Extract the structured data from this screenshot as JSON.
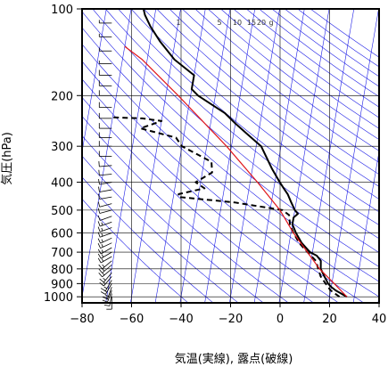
{
  "chart_data": {
    "type": "line",
    "chart_kind": "skew-T log-p thermodynamic diagram",
    "title": "",
    "xlabel": "気温(実線), 露点(破線)",
    "ylabel": "気圧(hPa)",
    "xlim": [
      -80,
      40
    ],
    "ylim": [
      1050,
      100
    ],
    "y_scale": "log",
    "x_ticks": [
      -80,
      -60,
      -40,
      -20,
      0,
      20,
      40
    ],
    "x_tick_labels": [
      "−80",
      "−60",
      "−40",
      "−20",
      "0",
      "20",
      "40"
    ],
    "y_ticks": [
      100,
      200,
      300,
      400,
      500,
      600,
      700,
      800,
      900,
      1000
    ],
    "y_tick_labels": [
      "100",
      "200",
      "300",
      "400",
      "500",
      "600",
      "700",
      "800",
      "900",
      "1000"
    ],
    "mixing_ratio_labels": [
      "1",
      "5",
      "10",
      "15",
      "20",
      "g"
    ],
    "colors": {
      "temperature": "#000000",
      "dewpoint": "#000000",
      "parcel": "#e0161b",
      "adiabats": "#1e1ee6",
      "grid": "#000000",
      "wind_barbs": "#000000"
    },
    "series": [
      {
        "line_style": "solid",
        "points": [
          {
            "p": 1000,
            "t": 27
          },
          {
            "p": 950,
            "t": 22
          },
          {
            "p": 925,
            "t": 20
          },
          {
            "p": 900,
            "t": 18.5
          },
          {
            "p": 850,
            "t": 16.5
          },
          {
            "p": 800,
            "t": 14.5
          },
          {
            "p": 750,
            "t": 14
          },
          {
            "p": 720,
            "t": 12
          },
          {
            "p": 700,
            "t": 9
          },
          {
            "p": 650,
            "t": 5
          },
          {
            "p": 600,
            "t": 2
          },
          {
            "p": 560,
            "t": 0
          },
          {
            "p": 530,
            "t": 0
          },
          {
            "p": 515,
            "t": 1.5
          },
          {
            "p": 500,
            "t": 0
          },
          {
            "p": 470,
            "t": -2
          },
          {
            "p": 440,
            "t": -4
          },
          {
            "p": 420,
            "t": -6
          },
          {
            "p": 400,
            "t": -8
          },
          {
            "p": 360,
            "t": -12
          },
          {
            "p": 300,
            "t": -18
          },
          {
            "p": 270,
            "t": -25
          },
          {
            "p": 250,
            "t": -30
          },
          {
            "p": 230,
            "t": -35
          },
          {
            "p": 200,
            "t": -47
          },
          {
            "p": 190,
            "t": -50
          },
          {
            "p": 170,
            "t": -50
          },
          {
            "p": 150,
            "t": -59
          },
          {
            "p": 130,
            "t": -66
          },
          {
            "p": 115,
            "t": -71
          },
          {
            "p": 105,
            "t": -74
          },
          {
            "p": 100,
            "t": -75
          }
        ]
      },
      {
        "line_style": "dashed",
        "points": [
          {
            "p": 1000,
            "t": 24
          },
          {
            "p": 950,
            "t": 20
          },
          {
            "p": 900,
            "t": 17.5
          },
          {
            "p": 850,
            "t": 15
          },
          {
            "p": 800,
            "t": 13.5
          },
          {
            "p": 750,
            "t": 12
          },
          {
            "p": 700,
            "t": 8
          },
          {
            "p": 650,
            "t": 4
          },
          {
            "p": 600,
            "t": 1
          },
          {
            "p": 560,
            "t": -1
          },
          {
            "p": 520,
            "t": -2
          },
          {
            "p": 500,
            "t": -5
          },
          {
            "p": 470,
            "t": -25
          },
          {
            "p": 450,
            "t": -48
          },
          {
            "p": 440,
            "t": -48
          },
          {
            "p": 420,
            "t": -38
          },
          {
            "p": 400,
            "t": -42
          },
          {
            "p": 370,
            "t": -36
          },
          {
            "p": 340,
            "t": -37
          },
          {
            "p": 300,
            "t": -50
          },
          {
            "p": 280,
            "t": -53
          },
          {
            "p": 260,
            "t": -68
          },
          {
            "p": 245,
            "t": -60
          },
          {
            "p": 240,
            "t": -68
          },
          {
            "p": 238,
            "t": -80
          }
        ]
      },
      {
        "line_style": "solid-thin",
        "points": [
          {
            "p": 1000,
            "t": 27
          },
          {
            "p": 900,
            "t": 21
          },
          {
            "p": 800,
            "t": 14
          },
          {
            "p": 700,
            "t": 8
          },
          {
            "p": 600,
            "t": 1
          },
          {
            "p": 500,
            "t": -6
          },
          {
            "p": 400,
            "t": -17
          },
          {
            "p": 300,
            "t": -32
          },
          {
            "p": 200,
            "t": -55
          },
          {
            "p": 150,
            "t": -72
          },
          {
            "p": 135,
            "t": -80
          }
        ]
      }
    ],
    "wind_barbs": [
      {
        "p": 1000,
        "speed_kt": 10,
        "dir": 180
      },
      {
        "p": 975,
        "speed_kt": 10,
        "dir": 190
      },
      {
        "p": 950,
        "speed_kt": 15,
        "dir": 200
      },
      {
        "p": 925,
        "speed_kt": 15,
        "dir": 200
      },
      {
        "p": 900,
        "speed_kt": 15,
        "dir": 210
      },
      {
        "p": 875,
        "speed_kt": 15,
        "dir": 210
      },
      {
        "p": 850,
        "speed_kt": 15,
        "dir": 220
      },
      {
        "p": 825,
        "speed_kt": 15,
        "dir": 220
      },
      {
        "p": 800,
        "speed_kt": 15,
        "dir": 230
      },
      {
        "p": 775,
        "speed_kt": 15,
        "dir": 230
      },
      {
        "p": 750,
        "speed_kt": 15,
        "dir": 230
      },
      {
        "p": 725,
        "speed_kt": 15,
        "dir": 240
      },
      {
        "p": 700,
        "speed_kt": 15,
        "dir": 240
      },
      {
        "p": 675,
        "speed_kt": 15,
        "dir": 240
      },
      {
        "p": 650,
        "speed_kt": 15,
        "dir": 245
      },
      {
        "p": 625,
        "speed_kt": 15,
        "dir": 245
      },
      {
        "p": 600,
        "speed_kt": 15,
        "dir": 250
      },
      {
        "p": 575,
        "speed_kt": 15,
        "dir": 250
      },
      {
        "p": 550,
        "speed_kt": 15,
        "dir": 250
      },
      {
        "p": 525,
        "speed_kt": 10,
        "dir": 250
      },
      {
        "p": 500,
        "speed_kt": 10,
        "dir": 255
      },
      {
        "p": 475,
        "speed_kt": 10,
        "dir": 255
      },
      {
        "p": 450,
        "speed_kt": 10,
        "dir": 260
      },
      {
        "p": 425,
        "speed_kt": 10,
        "dir": 260
      },
      {
        "p": 400,
        "speed_kt": 10,
        "dir": 260
      },
      {
        "p": 375,
        "speed_kt": 10,
        "dir": 265
      },
      {
        "p": 350,
        "speed_kt": 10,
        "dir": 265
      },
      {
        "p": 325,
        "speed_kt": 10,
        "dir": 270
      },
      {
        "p": 300,
        "speed_kt": 10,
        "dir": 270
      },
      {
        "p": 280,
        "speed_kt": 10,
        "dir": 270
      },
      {
        "p": 260,
        "speed_kt": 10,
        "dir": 270
      },
      {
        "p": 240,
        "speed_kt": 10,
        "dir": 270
      },
      {
        "p": 220,
        "speed_kt": 10,
        "dir": 270
      },
      {
        "p": 200,
        "speed_kt": 10,
        "dir": 270
      },
      {
        "p": 185,
        "speed_kt": 10,
        "dir": 270
      },
      {
        "p": 170,
        "speed_kt": 10,
        "dir": 270
      },
      {
        "p": 155,
        "speed_kt": 5,
        "dir": 270
      },
      {
        "p": 140,
        "speed_kt": 5,
        "dir": 270
      },
      {
        "p": 125,
        "speed_kt": 5,
        "dir": 270
      },
      {
        "p": 112,
        "speed_kt": 5,
        "dir": 270
      }
    ],
    "grid": true,
    "legend": "none"
  }
}
